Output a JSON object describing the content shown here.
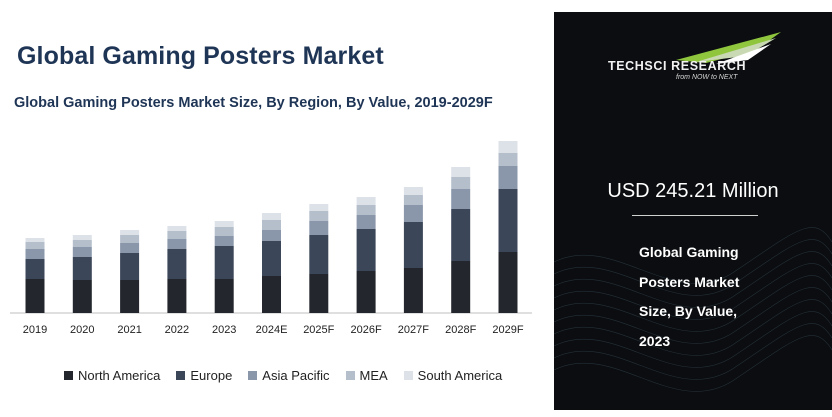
{
  "header": {
    "title": "Global Gaming Posters Market",
    "subtitle": "Global Gaming Posters Market Size, By Region, By Value, 2019-2029F"
  },
  "sidebar": {
    "logo_text": "TECHSCI RESEARCH",
    "logo_tagline": "from NOW to NEXT",
    "value": "USD 245.21 Million",
    "description_lines": [
      "Global Gaming",
      "Posters Market",
      "Size, By Value,",
      "2023"
    ]
  },
  "colors": {
    "north_america": "#23272d",
    "europe": "#3b4659",
    "asia_pacific": "#8a97ab",
    "mea": "#b5bfcc",
    "south_america": "#dde2e8",
    "title": "#1f3556",
    "panel_bg": "#0b0d10",
    "logo_green": "#8fc63e"
  },
  "chart_data": {
    "type": "bar",
    "stacked": true,
    "categories": [
      "2019",
      "2020",
      "2021",
      "2022",
      "2023",
      "2024E",
      "2025F",
      "2026F",
      "2027F",
      "2028F",
      "2029F"
    ],
    "series": [
      {
        "name": "North America",
        "values": [
          34,
          33,
          33,
          34,
          34,
          37,
          39,
          42,
          45,
          52,
          61
        ]
      },
      {
        "name": "Europe",
        "values": [
          20,
          23,
          27,
          30,
          33,
          35,
          39,
          42,
          46,
          52,
          63
        ]
      },
      {
        "name": "Asia Pacific",
        "values": [
          10,
          10,
          10,
          10,
          10,
          11,
          14,
          14,
          17,
          20,
          23
        ]
      },
      {
        "name": "MEA",
        "values": [
          7,
          7,
          8,
          8,
          9,
          10,
          10,
          10,
          10,
          12,
          13
        ]
      },
      {
        "name": "South America",
        "values": [
          4,
          5,
          5,
          5,
          6,
          7,
          7,
          8,
          8,
          10,
          12
        ]
      }
    ],
    "title": "",
    "xlabel": "",
    "ylabel": "",
    "grid": false,
    "legend": "bottom"
  }
}
